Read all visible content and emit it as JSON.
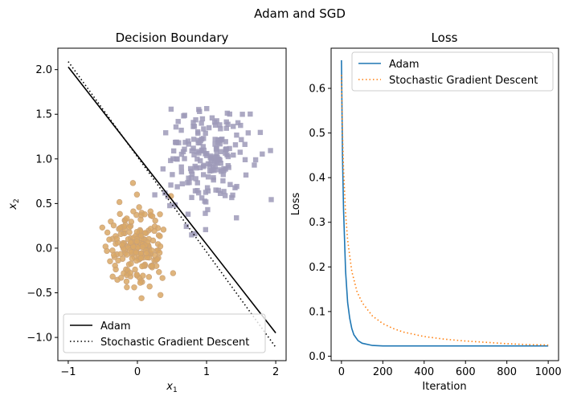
{
  "suptitle": "Adam and SGD",
  "chart_data": [
    {
      "type": "scatter",
      "title": "Decision Boundary",
      "xlabel": "x",
      "xlabel_sub": "1",
      "ylabel": "x",
      "ylabel_sub": "2",
      "xlim": [
        -1.15,
        2.15
      ],
      "ylim": [
        -1.26,
        2.24
      ],
      "xticks": [
        -1,
        0,
        1,
        2
      ],
      "xtick_labels": [
        "−1",
        "0",
        "1",
        "2"
      ],
      "yticks": [
        -1.0,
        -0.5,
        0.0,
        0.5,
        1.0,
        1.5,
        2.0
      ],
      "ytick_labels": [
        "−1.0",
        "−0.5",
        "0.0",
        "0.5",
        "1.0",
        "1.5",
        "2.0"
      ],
      "grid": false,
      "legend_position": "lower-left",
      "series": [
        {
          "name": "Adam",
          "style": "solid",
          "color": "#000000",
          "x": [
            -1,
            2
          ],
          "y": [
            2.03,
            -0.95
          ]
        },
        {
          "name": "Stochastic Gradient Descent",
          "style": "dotted",
          "color": "#000000",
          "x": [
            -1,
            2
          ],
          "y": [
            2.09,
            -1.11
          ]
        }
      ],
      "scatter_groups": [
        {
          "marker": "square",
          "color": "#9e9ab8",
          "center": [
            1.0,
            1.0
          ],
          "spread": 0.3,
          "count": 200,
          "seed": 7
        },
        {
          "marker": "circle",
          "color": "#d9a866",
          "center": [
            0.0,
            0.0
          ],
          "spread": 0.22,
          "count": 200,
          "seed": 13
        }
      ]
    },
    {
      "type": "line",
      "title": "Loss",
      "xlabel": "Iteration",
      "ylabel": "Loss",
      "xlim": [
        -50,
        1050
      ],
      "ylim": [
        -0.01,
        0.69
      ],
      "xticks": [
        0,
        200,
        400,
        600,
        800,
        1000
      ],
      "xtick_labels": [
        "0",
        "200",
        "400",
        "600",
        "800",
        "1000"
      ],
      "yticks": [
        0.0,
        0.1,
        0.2,
        0.3,
        0.4,
        0.5,
        0.6
      ],
      "ytick_labels": [
        "0.0",
        "0.1",
        "0.2",
        "0.3",
        "0.4",
        "0.5",
        "0.6"
      ],
      "grid": false,
      "legend_position": "upper-right",
      "series": [
        {
          "name": "Adam",
          "style": "solid",
          "color": "#1f77b4",
          "x": [
            0,
            5,
            10,
            20,
            30,
            40,
            50,
            60,
            80,
            100,
            150,
            200,
            300,
            400,
            600,
            800,
            1000
          ],
          "y": [
            0.663,
            0.45,
            0.33,
            0.19,
            0.12,
            0.085,
            0.062,
            0.048,
            0.035,
            0.029,
            0.024,
            0.023,
            0.023,
            0.023,
            0.023,
            0.023,
            0.023
          ]
        },
        {
          "name": "Stochastic Gradient Descent",
          "style": "dotted",
          "color": "#ff7f0e",
          "x": [
            0,
            5,
            10,
            20,
            30,
            50,
            75,
            100,
            150,
            200,
            250,
            300,
            400,
            500,
            600,
            700,
            800,
            900,
            1000
          ],
          "y": [
            0.63,
            0.5,
            0.42,
            0.32,
            0.26,
            0.19,
            0.145,
            0.12,
            0.09,
            0.073,
            0.062,
            0.054,
            0.044,
            0.038,
            0.034,
            0.031,
            0.028,
            0.026,
            0.025
          ]
        }
      ]
    }
  ]
}
